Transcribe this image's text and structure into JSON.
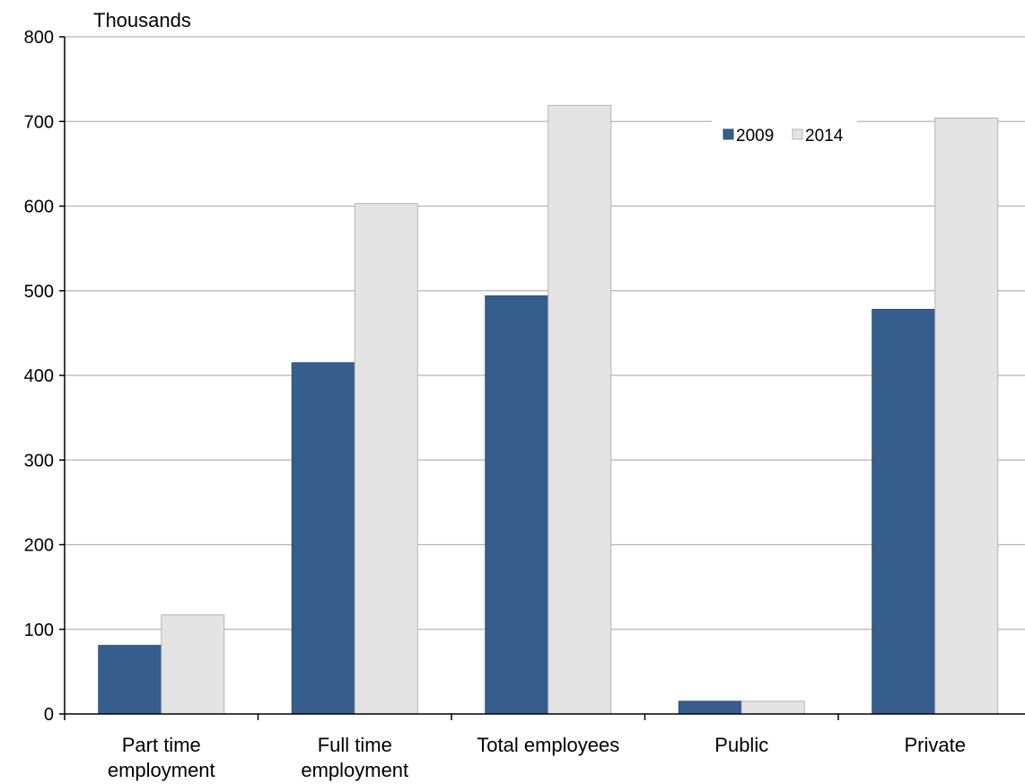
{
  "chart_data": {
    "type": "bar",
    "unit_label": "Thousands",
    "title": "",
    "xlabel": "",
    "ylabel": "",
    "categories": [
      [
        "Part time",
        "employment"
      ],
      [
        "Full time",
        "employment"
      ],
      [
        "Total employees"
      ],
      [
        "Public"
      ],
      [
        "Private"
      ]
    ],
    "series": [
      {
        "name": "2009",
        "values": [
          81,
          415,
          494,
          15,
          478
        ],
        "color": "#355e8d"
      },
      {
        "name": "2014",
        "values": [
          117,
          603,
          719,
          15,
          704
        ],
        "color": "#e4e4e4"
      }
    ],
    "ylim": [
      0,
      800
    ],
    "yticks": [
      0,
      100,
      200,
      300,
      400,
      500,
      600,
      700,
      800
    ],
    "grid": true,
    "legend_position": "top-right"
  }
}
